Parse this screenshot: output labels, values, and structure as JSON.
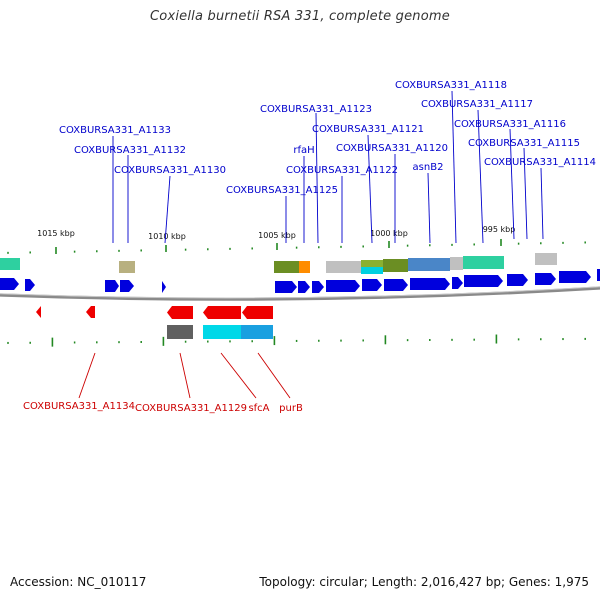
{
  "title": "Coxiella burnetii RSA 331, complete genome",
  "footer": {
    "accession": "Accession: NC_010117",
    "summary": "Topology: circular; Length: 2,016,427 bp; Genes: 1,975"
  },
  "colors": {
    "forward": "#0000dd",
    "reverse": "#ee0000",
    "tick": "#228822",
    "backbone": "#888888",
    "label_forward": "#0000cc",
    "label_reverse": "#cc0000"
  },
  "kbp_ticks": [
    "1015 kbp",
    "1010 kbp",
    "1005 kbp",
    "1000 kbp",
    "995 kbp"
  ],
  "forward_genes": [
    "COXBURSA331_A1133",
    "COXBURSA331_A1132",
    "COXBURSA331_A1130",
    "COXBURSA331_A1125",
    "rfaH",
    "COXBURSA331_A1123",
    "COXBURSA331_A1122",
    "COXBURSA331_A1121",
    "COXBURSA331_A1120",
    "asnB2",
    "COXBURSA331_A1118",
    "COXBURSA331_A1117",
    "COXBURSA331_A1116",
    "COXBURSA331_A1115",
    "COXBURSA331_A1114"
  ],
  "reverse_genes": [
    "COXBURSA331_A1134",
    "COXBURSA331_A1129",
    "sfcA",
    "purB"
  ]
}
